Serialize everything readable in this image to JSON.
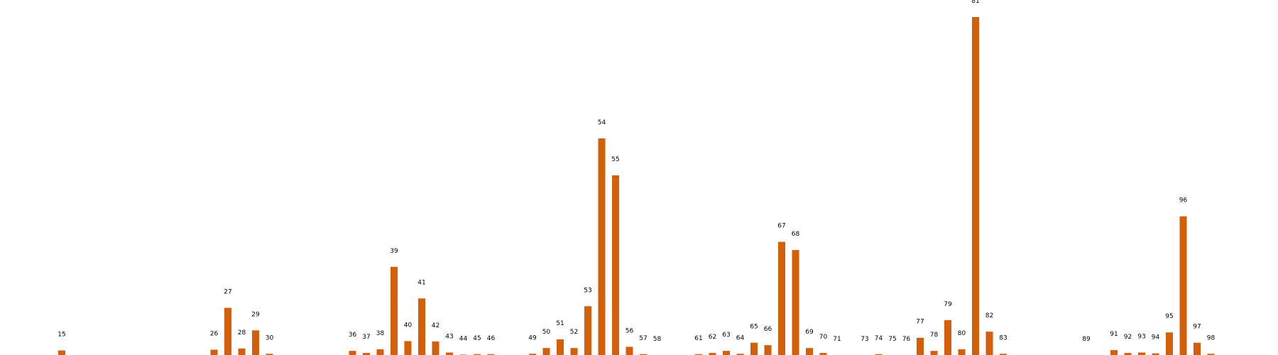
{
  "chart_data": {
    "type": "bar",
    "title": "",
    "xlabel": "",
    "ylabel": "",
    "grid": false,
    "legend": "none",
    "bar_color": "#d35f0a",
    "ylim": [
      0,
      82.4
    ],
    "categories": [
      "15",
      "26",
      "27",
      "28",
      "29",
      "30",
      "36",
      "37",
      "38",
      "39",
      "40",
      "41",
      "42",
      "43",
      "44",
      "45",
      "46",
      "49",
      "50",
      "51",
      "52",
      "53",
      "54",
      "55",
      "56",
      "57",
      "58",
      "61",
      "62",
      "63",
      "64",
      "65",
      "66",
      "67",
      "68",
      "69",
      "70",
      "71",
      "73",
      "74",
      "75",
      "76",
      "77",
      "78",
      "79",
      "80",
      "81",
      "82",
      "83",
      "89",
      "91",
      "92",
      "93",
      "94",
      "95",
      "96",
      "97",
      "98"
    ],
    "values": [
      1.1,
      1.3,
      11.5,
      1.6,
      6.0,
      0.3,
      1.0,
      0.5,
      1.4,
      21.5,
      3.4,
      13.8,
      3.3,
      0.6,
      0.1,
      0.2,
      0.2,
      0.3,
      1.7,
      3.8,
      1.7,
      11.9,
      52.8,
      43.8,
      2.0,
      0.2,
      0.0,
      0.2,
      0.5,
      1.0,
      0.3,
      3.0,
      2.4,
      27.6,
      25.6,
      1.7,
      0.5,
      0.0,
      0.0,
      0.2,
      0.0,
      0.0,
      4.2,
      1.0,
      8.5,
      1.4,
      82.4,
      5.7,
      0.3,
      0.0,
      1.2,
      0.5,
      0.6,
      0.4,
      5.5,
      33.8,
      3.0,
      0.3
    ]
  }
}
